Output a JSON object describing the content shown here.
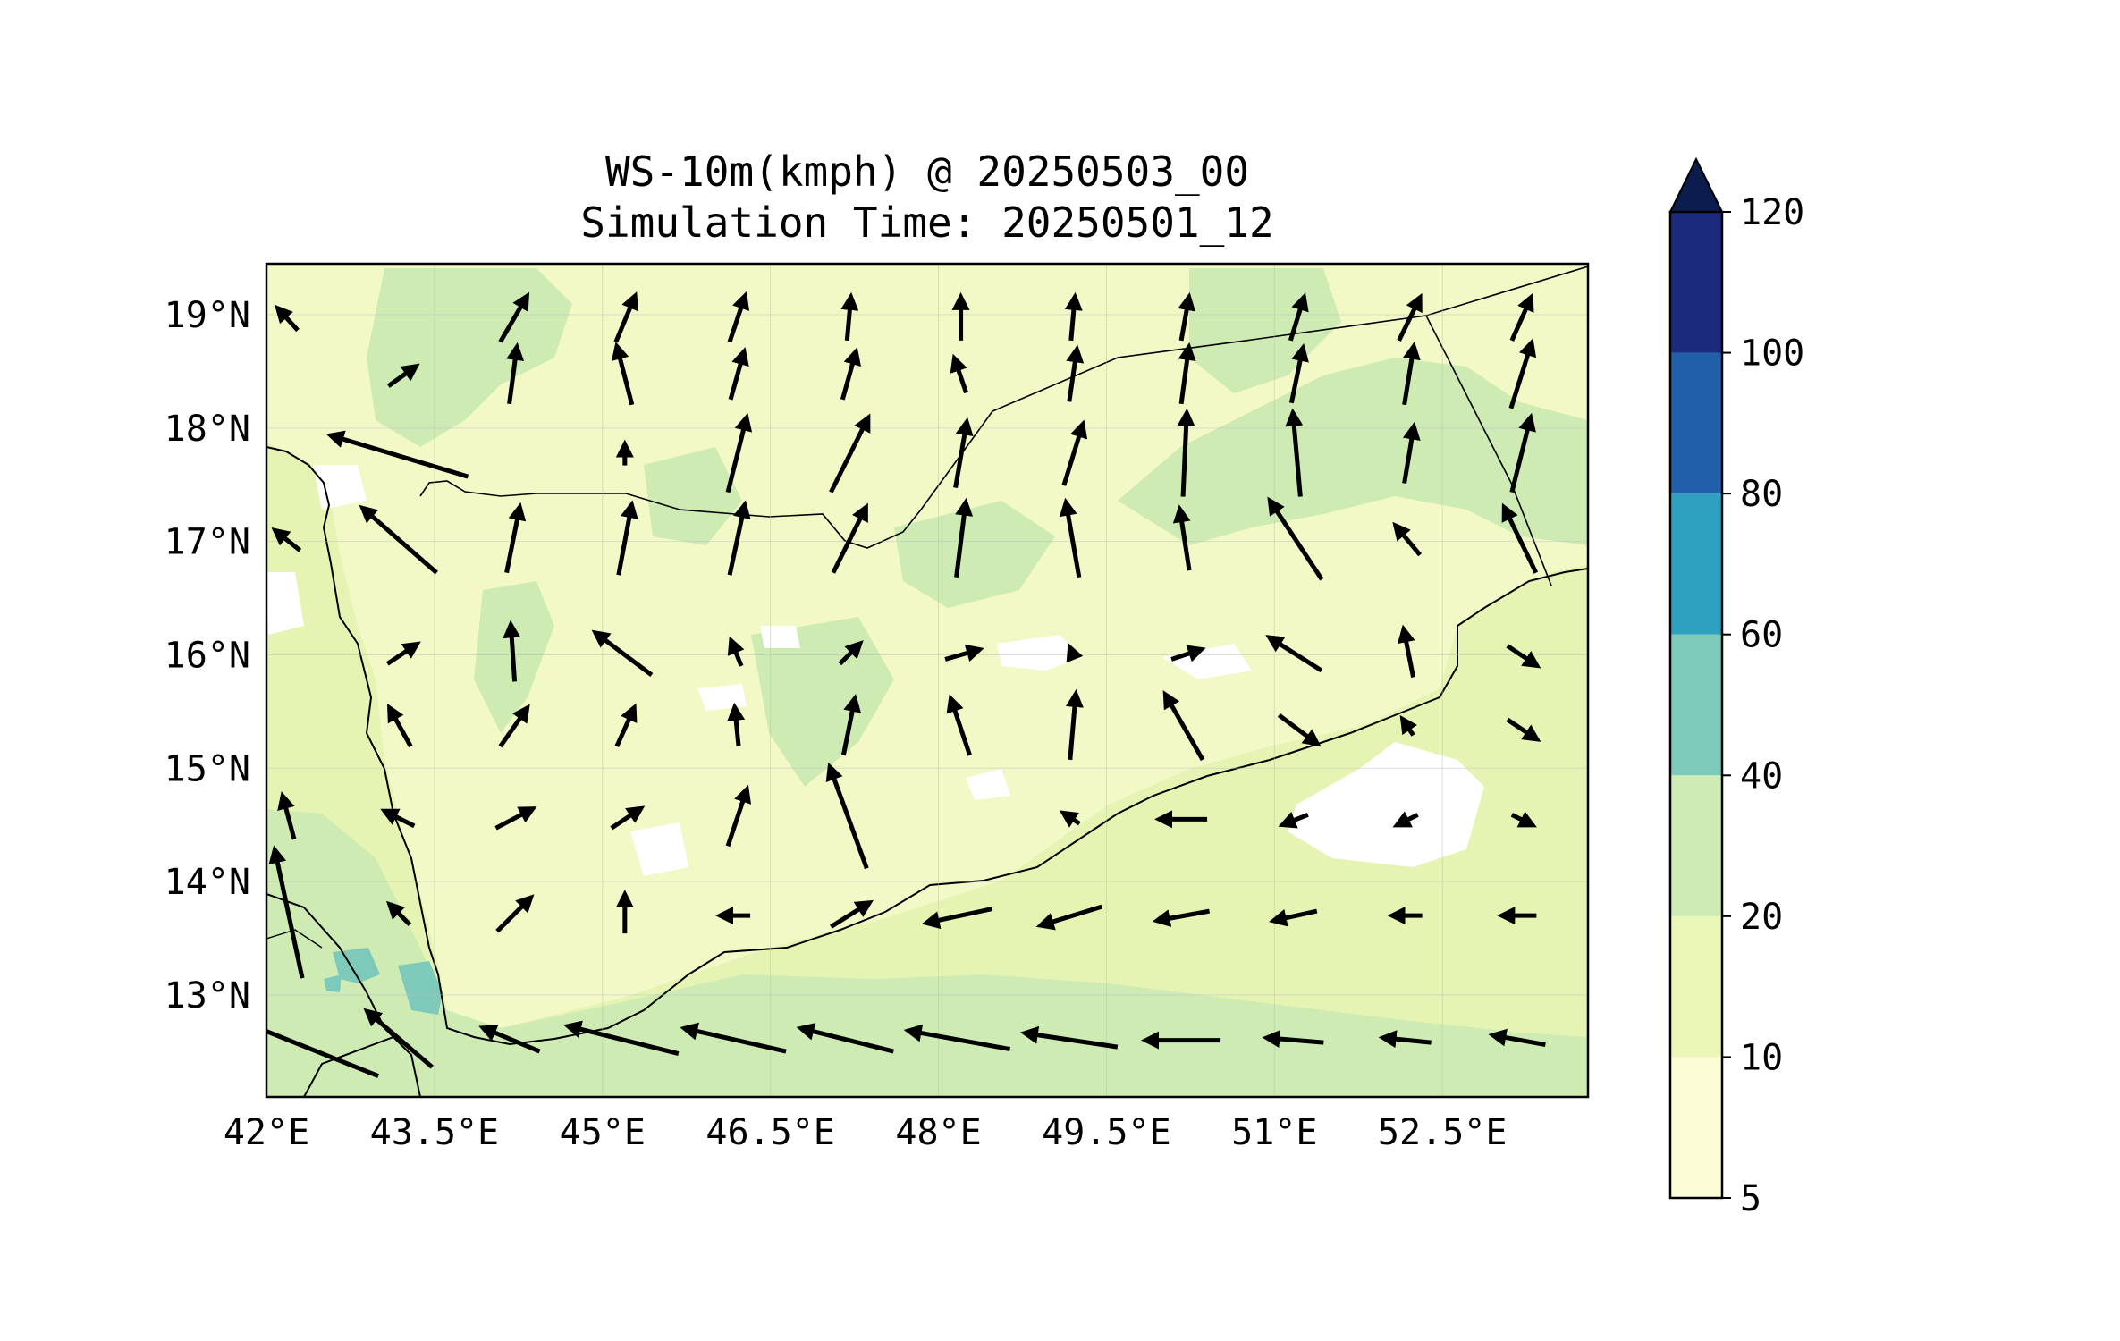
{
  "title": "WS-10m(kmph) @ 20250503_00",
  "subtitle": "Simulation Time: 20250501_12",
  "map": {
    "lon_range": [
      42.0,
      53.8
    ],
    "lat_range": [
      12.1,
      19.45
    ],
    "lon_ticks": [
      "42°E",
      "43.5°E",
      "45°E",
      "46.5°E",
      "48°E",
      "49.5°E",
      "51°E",
      "52.5°E"
    ],
    "lon_tick_values": [
      42,
      43.5,
      45,
      46.5,
      48,
      49.5,
      51,
      52.5
    ],
    "lat_ticks": [
      "19°N",
      "18°N",
      "17°N",
      "16°N",
      "15°N",
      "14°N",
      "13°N"
    ],
    "lat_tick_values": [
      19,
      18,
      17,
      16,
      15,
      14,
      13
    ],
    "colorbar": {
      "ticks": [
        "120",
        "100",
        "80",
        "60",
        "40",
        "20",
        "10",
        "5"
      ],
      "levels": [
        5,
        10,
        20,
        40,
        60,
        80,
        100,
        120
      ],
      "colors": [
        "#fbfdd7",
        "#eaf7b6",
        "#cdebb3",
        "#7dcabb",
        "#2ea1c0",
        "#2160a8",
        "#1c2a7e"
      ],
      "extend_color": "#0b1d4d"
    },
    "colors": {
      "land_base": "#f2f9c7",
      "sea_base": "#e6f4b3",
      "calm": "#ffffff",
      "band_20_40": "#cdebb3",
      "band_40_60": "#7dcabb"
    }
  }
}
